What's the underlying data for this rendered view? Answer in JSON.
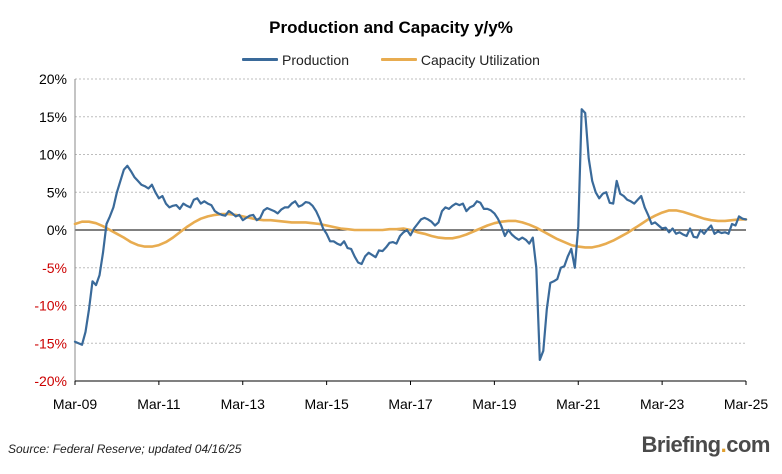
{
  "chart_data": {
    "type": "line",
    "title": "Production and Capacity y/y%",
    "xlabel": "",
    "ylabel": "",
    "ylim": [
      -20,
      20
    ],
    "y_ticks": [
      "20%",
      "15%",
      "10%",
      "5%",
      "0%",
      "-5%",
      "-10%",
      "-15%",
      "-20%"
    ],
    "x_ticks": [
      "Mar-09",
      "Mar-11",
      "Mar-13",
      "Mar-15",
      "Mar-17",
      "Mar-19",
      "Mar-21",
      "Mar-23",
      "Mar-25"
    ],
    "grid": true,
    "legend_position": "top-center",
    "negative_tick_color": "#cc0000",
    "series": [
      {
        "name": "Production",
        "color": "#3a6a9a",
        "points": [
          [
            "2009-03",
            -14.8
          ],
          [
            "2009-05",
            -15.2
          ],
          [
            "2009-06",
            -13.5
          ],
          [
            "2009-07",
            -10.5
          ],
          [
            "2009-08",
            -6.8
          ],
          [
            "2009-09",
            -7.3
          ],
          [
            "2009-10",
            -6
          ],
          [
            "2009-11",
            -3
          ],
          [
            "2009-12",
            0.8
          ],
          [
            "2010-01",
            1.8
          ],
          [
            "2010-02",
            3
          ],
          [
            "2010-03",
            5
          ],
          [
            "2010-04",
            6.5
          ],
          [
            "2010-05",
            8
          ],
          [
            "2010-06",
            8.5
          ],
          [
            "2010-07",
            7.8
          ],
          [
            "2010-08",
            7
          ],
          [
            "2010-09",
            6.5
          ],
          [
            "2010-10",
            6
          ],
          [
            "2010-11",
            5.8
          ],
          [
            "2010-12",
            5.5
          ],
          [
            "2011-01",
            6
          ],
          [
            "2011-02",
            5
          ],
          [
            "2011-03",
            4.2
          ],
          [
            "2011-04",
            4.5
          ],
          [
            "2011-05",
            3.5
          ],
          [
            "2011-06",
            3
          ],
          [
            "2011-07",
            3.2
          ],
          [
            "2011-08",
            3.3
          ],
          [
            "2011-09",
            2.8
          ],
          [
            "2011-10",
            3.5
          ],
          [
            "2011-11",
            3.2
          ],
          [
            "2011-12",
            3
          ],
          [
            "2012-01",
            4
          ],
          [
            "2012-02",
            4.2
          ],
          [
            "2012-03",
            3.5
          ],
          [
            "2012-04",
            3.8
          ],
          [
            "2012-05",
            3.5
          ],
          [
            "2012-06",
            3.3
          ],
          [
            "2012-07",
            2.5
          ],
          [
            "2012-08",
            2.2
          ],
          [
            "2012-09",
            2
          ],
          [
            "2012-10",
            1.9
          ],
          [
            "2012-11",
            2.5
          ],
          [
            "2012-12",
            2.2
          ],
          [
            "2013-01",
            1.8
          ],
          [
            "2013-02",
            2
          ],
          [
            "2013-03",
            1.3
          ],
          [
            "2013-04",
            1.6
          ],
          [
            "2013-05",
            1.9
          ],
          [
            "2013-06",
            2
          ],
          [
            "2013-07",
            1.3
          ],
          [
            "2013-08",
            1.6
          ],
          [
            "2013-09",
            2.6
          ],
          [
            "2013-10",
            2.9
          ],
          [
            "2013-11",
            2.7
          ],
          [
            "2013-12",
            2.5
          ],
          [
            "2014-01",
            2.2
          ],
          [
            "2014-02",
            2.7
          ],
          [
            "2014-03",
            3
          ],
          [
            "2014-04",
            3
          ],
          [
            "2014-05",
            3.5
          ],
          [
            "2014-06",
            3.8
          ],
          [
            "2014-07",
            3.1
          ],
          [
            "2014-08",
            3.3
          ],
          [
            "2014-09",
            3.7
          ],
          [
            "2014-10",
            3.6
          ],
          [
            "2014-11",
            3.2
          ],
          [
            "2014-12",
            2.5
          ],
          [
            "2015-01",
            1.5
          ],
          [
            "2015-02",
            0.2
          ],
          [
            "2015-03",
            -0.5
          ],
          [
            "2015-04",
            -1.5
          ],
          [
            "2015-05",
            -1.5
          ],
          [
            "2015-06",
            -1.8
          ],
          [
            "2015-07",
            -2
          ],
          [
            "2015-08",
            -1.5
          ],
          [
            "2015-09",
            -2.4
          ],
          [
            "2015-10",
            -2.5
          ],
          [
            "2015-11",
            -3.5
          ],
          [
            "2015-12",
            -4.3
          ],
          [
            "2016-01",
            -4.5
          ],
          [
            "2016-02",
            -3.5
          ],
          [
            "2016-03",
            -3
          ],
          [
            "2016-04",
            -3.3
          ],
          [
            "2016-05",
            -3.6
          ],
          [
            "2016-06",
            -2.7
          ],
          [
            "2016-07",
            -2.8
          ],
          [
            "2016-08",
            -2.3
          ],
          [
            "2016-09",
            -1.7
          ],
          [
            "2016-10",
            -1.6
          ],
          [
            "2016-11",
            -1.8
          ],
          [
            "2016-12",
            -0.8
          ],
          [
            "2017-01",
            -0.3
          ],
          [
            "2017-02",
            0
          ],
          [
            "2017-03",
            -0.7
          ],
          [
            "2017-04",
            0.2
          ],
          [
            "2017-05",
            0.8
          ],
          [
            "2017-06",
            1.4
          ],
          [
            "2017-07",
            1.6
          ],
          [
            "2017-08",
            1.4
          ],
          [
            "2017-09",
            1.1
          ],
          [
            "2017-10",
            0.6
          ],
          [
            "2017-11",
            1
          ],
          [
            "2017-12",
            2.5
          ],
          [
            "2018-01",
            3
          ],
          [
            "2018-02",
            2.8
          ],
          [
            "2018-03",
            3.2
          ],
          [
            "2018-04",
            3.5
          ],
          [
            "2018-05",
            3.3
          ],
          [
            "2018-06",
            3.5
          ],
          [
            "2018-07",
            2.5
          ],
          [
            "2018-08",
            3
          ],
          [
            "2018-09",
            3.2
          ],
          [
            "2018-10",
            3.8
          ],
          [
            "2018-11",
            3.6
          ],
          [
            "2018-12",
            2.8
          ],
          [
            "2019-01",
            2.8
          ],
          [
            "2019-02",
            2.6
          ],
          [
            "2019-03",
            2.2
          ],
          [
            "2019-04",
            1.5
          ],
          [
            "2019-05",
            0.5
          ],
          [
            "2019-06",
            -0.8
          ],
          [
            "2019-07",
            0
          ],
          [
            "2019-08",
            -0.6
          ],
          [
            "2019-09",
            -1
          ],
          [
            "2019-10",
            -1.3
          ],
          [
            "2019-11",
            -1
          ],
          [
            "2019-12",
            -1.3
          ],
          [
            "2020-01",
            -1.8
          ],
          [
            "2020-02",
            -1
          ],
          [
            "2020-03",
            -5
          ],
          [
            "2020-04",
            -17.2
          ],
          [
            "2020-05",
            -16
          ],
          [
            "2020-06",
            -10.5
          ],
          [
            "2020-07",
            -7
          ],
          [
            "2020-08",
            -6.8
          ],
          [
            "2020-09",
            -6.5
          ],
          [
            "2020-10",
            -5
          ],
          [
            "2020-11",
            -4.8
          ],
          [
            "2020-12",
            -3.5
          ],
          [
            "2021-01",
            -2.5
          ],
          [
            "2021-02",
            -5
          ],
          [
            "2021-03",
            0.5
          ],
          [
            "2021-04",
            16
          ],
          [
            "2021-05",
            15.5
          ],
          [
            "2021-06",
            9.5
          ],
          [
            "2021-07",
            6.5
          ],
          [
            "2021-08",
            5
          ],
          [
            "2021-09",
            4.2
          ],
          [
            "2021-10",
            4.8
          ],
          [
            "2021-11",
            5
          ],
          [
            "2021-12",
            3.6
          ],
          [
            "2022-01",
            3.5
          ],
          [
            "2022-02",
            6.5
          ],
          [
            "2022-03",
            4.8
          ],
          [
            "2022-04",
            4.5
          ],
          [
            "2022-05",
            4
          ],
          [
            "2022-06",
            3.8
          ],
          [
            "2022-07",
            3.5
          ],
          [
            "2022-08",
            4
          ],
          [
            "2022-09",
            4.5
          ],
          [
            "2022-10",
            3
          ],
          [
            "2022-11",
            2
          ],
          [
            "2022-12",
            0.8
          ],
          [
            "2023-01",
            1
          ],
          [
            "2023-02",
            0.6
          ],
          [
            "2023-03",
            0.2
          ],
          [
            "2023-04",
            0.3
          ],
          [
            "2023-05",
            -0.3
          ],
          [
            "2023-06",
            0.2
          ],
          [
            "2023-07",
            -0.5
          ],
          [
            "2023-08",
            -0.3
          ],
          [
            "2023-09",
            -0.6
          ],
          [
            "2023-10",
            -0.8
          ],
          [
            "2023-11",
            0.2
          ],
          [
            "2023-12",
            -0.9
          ],
          [
            "2024-01",
            -1
          ],
          [
            "2024-02",
            0
          ],
          [
            "2024-03",
            -0.5
          ],
          [
            "2024-04",
            0.1
          ],
          [
            "2024-05",
            0.6
          ],
          [
            "2024-06",
            -0.5
          ],
          [
            "2024-07",
            -0.2
          ],
          [
            "2024-08",
            -0.4
          ],
          [
            "2024-09",
            -0.3
          ],
          [
            "2024-10",
            -0.5
          ],
          [
            "2024-11",
            0.8
          ],
          [
            "2024-12",
            0.6
          ],
          [
            "2025-01",
            1.8
          ],
          [
            "2025-02",
            1.5
          ],
          [
            "2025-03",
            1.4
          ]
        ]
      },
      {
        "name": "Capacity Utilization",
        "color": "#e8ac50",
        "points": [
          [
            "2009-03",
            0.8
          ],
          [
            "2009-05",
            1.1
          ],
          [
            "2009-07",
            1.1
          ],
          [
            "2009-09",
            0.9
          ],
          [
            "2009-11",
            0.5
          ],
          [
            "2010-01",
            0
          ],
          [
            "2010-03",
            -0.5
          ],
          [
            "2010-05",
            -1
          ],
          [
            "2010-07",
            -1.6
          ],
          [
            "2010-09",
            -2
          ],
          [
            "2010-11",
            -2.2
          ],
          [
            "2011-01",
            -2.2
          ],
          [
            "2011-03",
            -2
          ],
          [
            "2011-05",
            -1.6
          ],
          [
            "2011-07",
            -1
          ],
          [
            "2011-09",
            -0.3
          ],
          [
            "2011-11",
            0.4
          ],
          [
            "2012-01",
            1
          ],
          [
            "2012-03",
            1.5
          ],
          [
            "2012-05",
            1.8
          ],
          [
            "2012-07",
            2
          ],
          [
            "2012-09",
            2.1
          ],
          [
            "2012-11",
            2.1
          ],
          [
            "2013-01",
            2
          ],
          [
            "2013-03",
            1.8
          ],
          [
            "2013-05",
            1.6
          ],
          [
            "2013-07",
            1.4
          ],
          [
            "2013-09",
            1.3
          ],
          [
            "2013-11",
            1.3
          ],
          [
            "2014-01",
            1.2
          ],
          [
            "2014-03",
            1.1
          ],
          [
            "2014-05",
            1
          ],
          [
            "2014-07",
            1
          ],
          [
            "2014-09",
            1
          ],
          [
            "2014-11",
            0.9
          ],
          [
            "2015-01",
            0.8
          ],
          [
            "2015-03",
            0.6
          ],
          [
            "2015-05",
            0.4
          ],
          [
            "2015-07",
            0.2
          ],
          [
            "2015-09",
            0.1
          ],
          [
            "2015-11",
            0
          ],
          [
            "2016-01",
            0
          ],
          [
            "2016-03",
            0
          ],
          [
            "2016-05",
            0
          ],
          [
            "2016-07",
            0
          ],
          [
            "2016-09",
            0.1
          ],
          [
            "2016-11",
            0.1
          ],
          [
            "2017-01",
            0.2
          ],
          [
            "2017-03",
            0
          ],
          [
            "2017-05",
            -0.3
          ],
          [
            "2017-07",
            -0.5
          ],
          [
            "2017-09",
            -0.8
          ],
          [
            "2017-11",
            -1
          ],
          [
            "2018-01",
            -1.1
          ],
          [
            "2018-03",
            -1.1
          ],
          [
            "2018-05",
            -0.9
          ],
          [
            "2018-07",
            -0.6
          ],
          [
            "2018-09",
            -0.2
          ],
          [
            "2018-11",
            0.2
          ],
          [
            "2019-01",
            0.6
          ],
          [
            "2019-03",
            0.9
          ],
          [
            "2019-05",
            1.1
          ],
          [
            "2019-07",
            1.2
          ],
          [
            "2019-09",
            1.2
          ],
          [
            "2019-11",
            1
          ],
          [
            "2020-01",
            0.7
          ],
          [
            "2020-03",
            0.3
          ],
          [
            "2020-05",
            -0.2
          ],
          [
            "2020-07",
            -0.7
          ],
          [
            "2020-09",
            -1.2
          ],
          [
            "2020-11",
            -1.6
          ],
          [
            "2021-01",
            -2
          ],
          [
            "2021-03",
            -2.2
          ],
          [
            "2021-05",
            -2.3
          ],
          [
            "2021-07",
            -2.3
          ],
          [
            "2021-09",
            -2.1
          ],
          [
            "2021-11",
            -1.8
          ],
          [
            "2022-01",
            -1.4
          ],
          [
            "2022-03",
            -0.9
          ],
          [
            "2022-05",
            -0.4
          ],
          [
            "2022-07",
            0.2
          ],
          [
            "2022-09",
            0.8
          ],
          [
            "2022-11",
            1.4
          ],
          [
            "2023-01",
            1.9
          ],
          [
            "2023-03",
            2.3
          ],
          [
            "2023-05",
            2.6
          ],
          [
            "2023-07",
            2.6
          ],
          [
            "2023-09",
            2.4
          ],
          [
            "2023-11",
            2.1
          ],
          [
            "2024-01",
            1.8
          ],
          [
            "2024-03",
            1.5
          ],
          [
            "2024-05",
            1.3
          ],
          [
            "2024-07",
            1.2
          ],
          [
            "2024-09",
            1.2
          ],
          [
            "2024-11",
            1.3
          ],
          [
            "2025-01",
            1.4
          ],
          [
            "2025-03",
            1.4
          ]
        ]
      }
    ]
  },
  "footer": {
    "source": "Source: Federal Reserve; updated 04/16/25",
    "brand_main": "Briefing",
    "brand_dot": ".",
    "brand_tld": "com"
  }
}
